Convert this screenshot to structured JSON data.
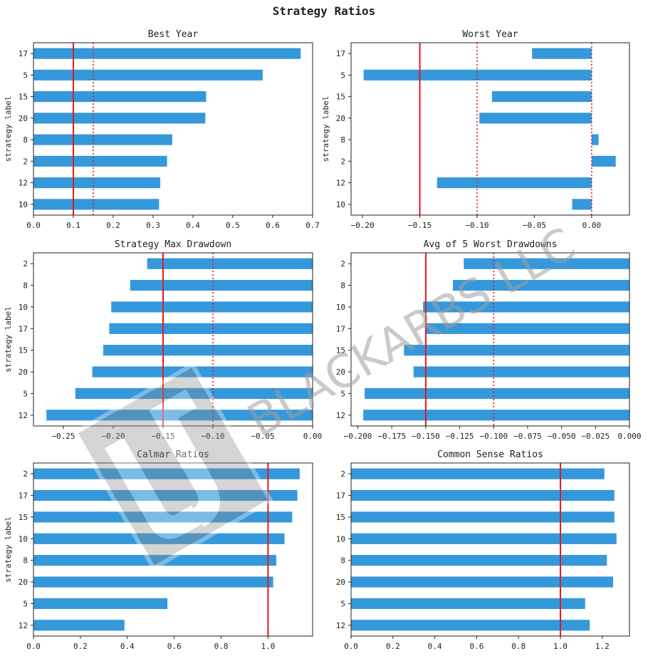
{
  "figure": {
    "title": "Strategy Ratios"
  },
  "watermark": {
    "text": "BLACKARBS LLC",
    "color": "#9e9e9e"
  },
  "style": {
    "bar_color": "#3498db",
    "ref_line_color": "#e31a1c",
    "axes_color": "#222222"
  },
  "chart_data": [
    {
      "type": "bar",
      "orientation": "horizontal",
      "title": "Best Year",
      "ylabel": "strategy label",
      "categories": [
        "17",
        "5",
        "15",
        "20",
        "8",
        "2",
        "12",
        "10"
      ],
      "values": [
        0.67,
        0.575,
        0.433,
        0.431,
        0.348,
        0.335,
        0.318,
        0.315
      ],
      "xlim": [
        0,
        0.7
      ],
      "xticks": [
        0.0,
        0.1,
        0.2,
        0.3,
        0.4,
        0.5,
        0.6,
        0.7
      ],
      "xtick_labels": [
        "0.0",
        "0.1",
        "0.2",
        "0.3",
        "0.4",
        "0.5",
        "0.6",
        "0.7"
      ],
      "ref_lines": [
        {
          "x": 0.1,
          "style": "solid"
        },
        {
          "x": 0.15,
          "style": "dotted"
        }
      ]
    },
    {
      "type": "bar",
      "orientation": "horizontal",
      "title": "Worst Year",
      "ylabel": "strategy label",
      "categories": [
        "17",
        "5",
        "15",
        "20",
        "8",
        "2",
        "12",
        "10"
      ],
      "values": [
        -0.052,
        -0.199,
        -0.087,
        -0.098,
        0.006,
        0.021,
        -0.135,
        -0.017
      ],
      "xlim": [
        -0.21,
        0.033
      ],
      "xticks": [
        -0.2,
        -0.15,
        -0.1,
        -0.05,
        0.0
      ],
      "xtick_labels": [
        "−0.20",
        "−0.15",
        "−0.10",
        "−0.05",
        "0.00"
      ],
      "ref_lines": [
        {
          "x": -0.15,
          "style": "solid"
        },
        {
          "x": -0.1,
          "style": "dotted"
        },
        {
          "x": 0.0,
          "style": "dotted"
        }
      ]
    },
    {
      "type": "bar",
      "orientation": "horizontal",
      "title": "Strategy Max Drawdown",
      "ylabel": "strategy label",
      "categories": [
        "2",
        "8",
        "10",
        "17",
        "15",
        "20",
        "5",
        "12"
      ],
      "values": [
        -0.166,
        -0.183,
        -0.202,
        -0.204,
        -0.21,
        -0.221,
        -0.238,
        -0.267
      ],
      "xlim": [
        -0.28,
        0.0
      ],
      "xticks": [
        -0.25,
        -0.2,
        -0.15,
        -0.1,
        -0.05,
        0.0
      ],
      "xtick_labels": [
        "−0.25",
        "−0.20",
        "−0.15",
        "−0.10",
        "−0.05",
        "0.00"
      ],
      "ref_lines": [
        {
          "x": -0.15,
          "style": "solid"
        },
        {
          "x": -0.1,
          "style": "dotted"
        }
      ]
    },
    {
      "type": "bar",
      "orientation": "horizontal",
      "title": "Avg of 5 Worst Drawdowns",
      "ylabel": "",
      "categories": [
        "2",
        "8",
        "10",
        "17",
        "15",
        "20",
        "5",
        "12"
      ],
      "values": [
        -0.122,
        -0.13,
        -0.152,
        -0.15,
        -0.166,
        -0.159,
        -0.195,
        -0.196
      ],
      "xlim": [
        -0.205,
        0.0
      ],
      "xticks": [
        -0.2,
        -0.175,
        -0.15,
        -0.125,
        -0.1,
        -0.075,
        -0.05,
        -0.025,
        0.0
      ],
      "xtick_labels": [
        "−0.200",
        "−0.175",
        "−0.150",
        "−0.125",
        "−0.100",
        "−0.075",
        "−0.050",
        "−0.025",
        "0.000"
      ],
      "ref_lines": [
        {
          "x": -0.15,
          "style": "solid"
        },
        {
          "x": -0.1,
          "style": "dotted"
        }
      ]
    },
    {
      "type": "bar",
      "orientation": "horizontal",
      "title": "Calmar Ratios",
      "ylabel": "strategy label",
      "categories": [
        "2",
        "17",
        "15",
        "10",
        "8",
        "20",
        "5",
        "12"
      ],
      "values": [
        1.135,
        1.125,
        1.103,
        1.07,
        1.035,
        1.022,
        0.571,
        0.388
      ],
      "xlim": [
        0,
        1.19
      ],
      "xticks": [
        0.0,
        0.2,
        0.4,
        0.6,
        0.8,
        1.0
      ],
      "xtick_labels": [
        "0.0",
        "0.2",
        "0.4",
        "0.6",
        "0.8",
        "1.0"
      ],
      "ref_lines": [
        {
          "x": 1.0,
          "style": "solid"
        }
      ]
    },
    {
      "type": "bar",
      "orientation": "horizontal",
      "title": "Common Sense Ratios",
      "ylabel": "",
      "categories": [
        "2",
        "17",
        "15",
        "10",
        "8",
        "20",
        "5",
        "12"
      ],
      "values": [
        1.21,
        1.258,
        1.258,
        1.268,
        1.222,
        1.252,
        1.118,
        1.14
      ],
      "xlim": [
        0,
        1.33
      ],
      "xticks": [
        0.0,
        0.2,
        0.4,
        0.6,
        0.8,
        1.0,
        1.2
      ],
      "xtick_labels": [
        "0.0",
        "0.2",
        "0.4",
        "0.6",
        "0.8",
        "1.0",
        "1.2"
      ],
      "ref_lines": [
        {
          "x": 1.0,
          "style": "solid"
        }
      ]
    }
  ]
}
